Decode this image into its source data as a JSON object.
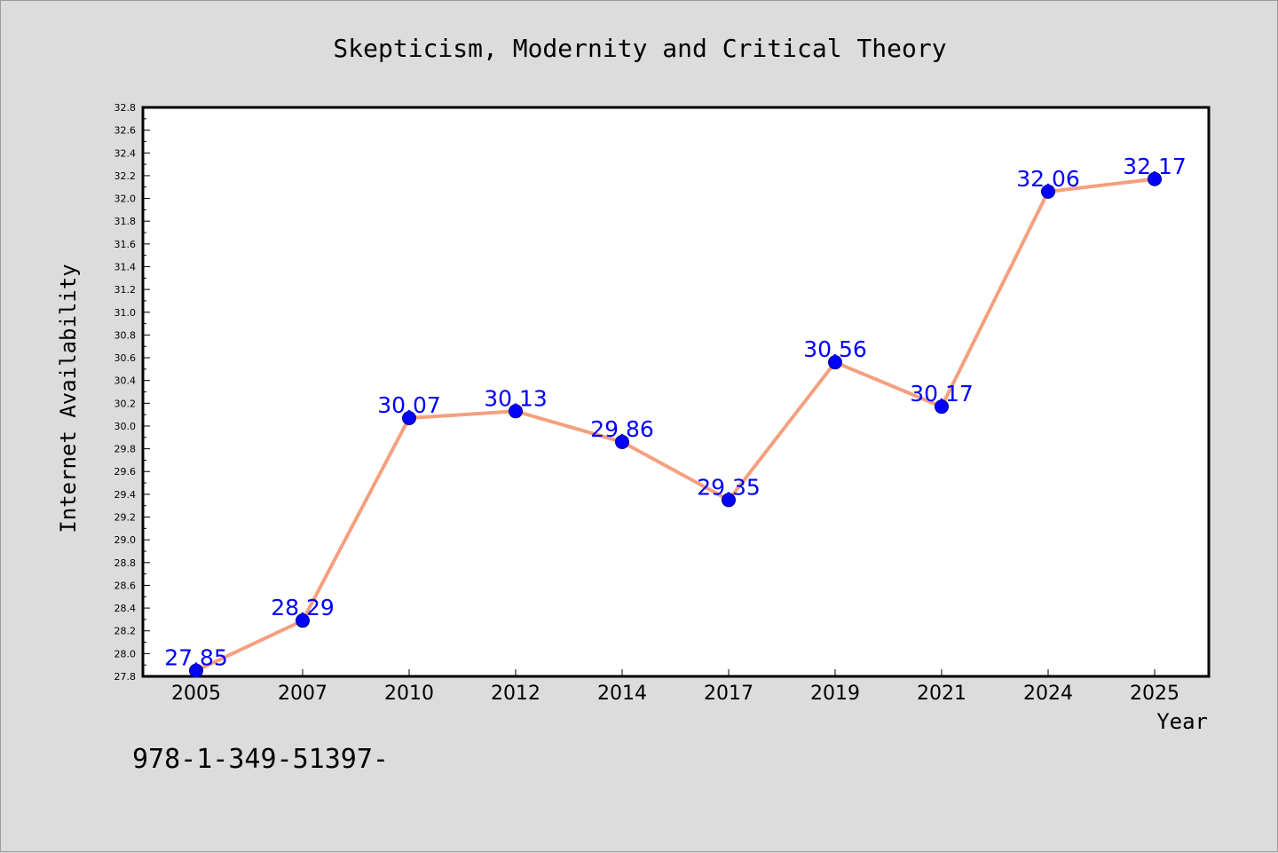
{
  "footer_text": "978-1-349-51397-",
  "colors": {
    "background": "#dcdcdc",
    "plot_background": "#ffffff",
    "line": "#f4a07e",
    "marker": "#0000ff",
    "data_label": "#0000ff"
  },
  "chart_data": {
    "type": "line",
    "title": "Skepticism, Modernity and Critical Theory",
    "xlabel": "Year",
    "ylabel": "Internet Availability",
    "categories": [
      "2005",
      "2007",
      "2010",
      "2012",
      "2014",
      "2017",
      "2019",
      "2021",
      "2024",
      "2025"
    ],
    "series": [
      {
        "values": [
          27.85,
          28.29,
          30.07,
          30.13,
          29.86,
          29.35,
          30.56,
          30.17,
          32.06,
          32.17
        ],
        "labels": [
          "27.85",
          "28.29",
          "30.07",
          "30.13",
          "29.86",
          "29.35",
          "30.56",
          "30.17",
          "32.06",
          "32.17"
        ]
      }
    ],
    "ylim": [
      27.8,
      32.8
    ],
    "y_ticks": [
      "27.8",
      "28.0",
      "28.2",
      "28.4",
      "28.6",
      "28.8",
      "29.0",
      "29.2",
      "29.4",
      "29.6",
      "29.8",
      "30.0",
      "30.2",
      "30.4",
      "30.6",
      "30.8",
      "31.0",
      "31.2",
      "31.4",
      "31.6",
      "31.8",
      "32.0",
      "32.2",
      "32.4",
      "32.6",
      "32.8"
    ],
    "y_minor_step": 0.1,
    "grid": false,
    "legend": "none"
  }
}
